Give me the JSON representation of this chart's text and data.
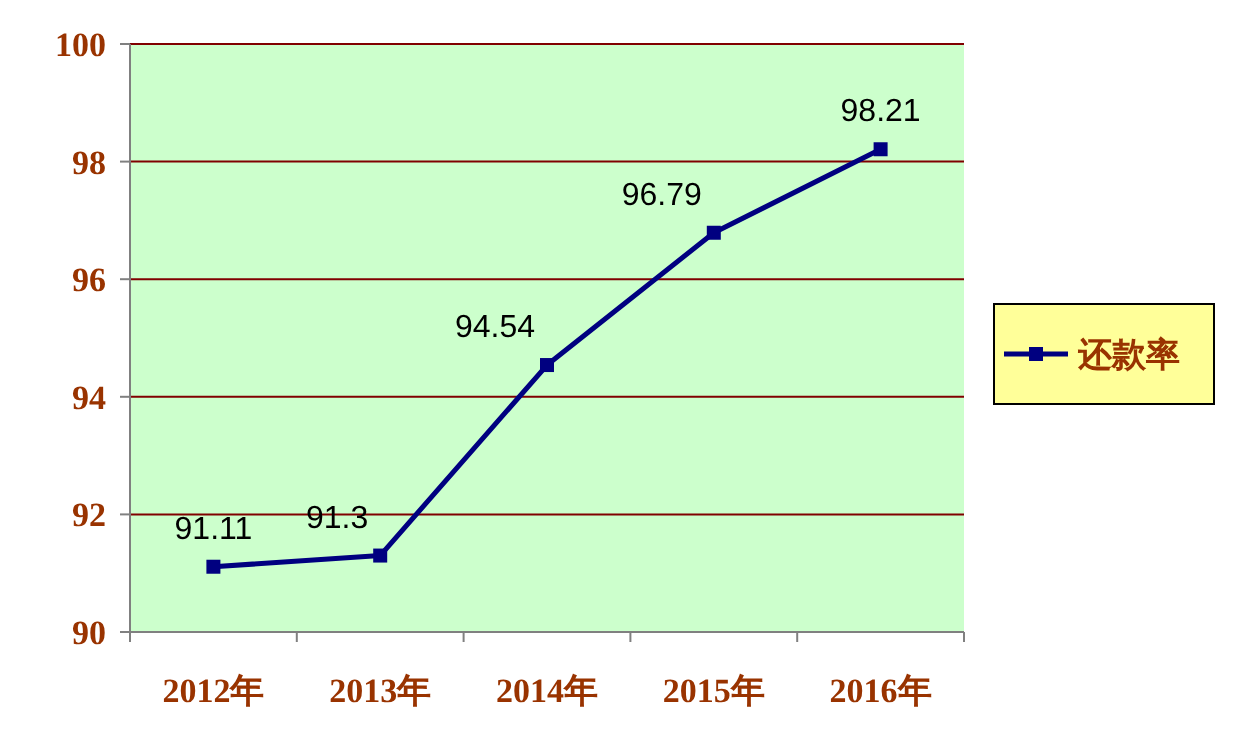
{
  "chart_data": {
    "type": "line",
    "categories": [
      "2012年",
      "2013年",
      "2014年",
      "2015年",
      "2016年"
    ],
    "series": [
      {
        "name": "还款率",
        "color": "#000080",
        "values": [
          91.11,
          91.3,
          94.54,
          96.79,
          98.21
        ]
      }
    ],
    "ylim": [
      90,
      100
    ],
    "yticks": [
      90,
      92,
      94,
      96,
      98,
      100
    ],
    "grid": "y",
    "legend": "right",
    "data_labels": true,
    "marker": "square"
  }
}
